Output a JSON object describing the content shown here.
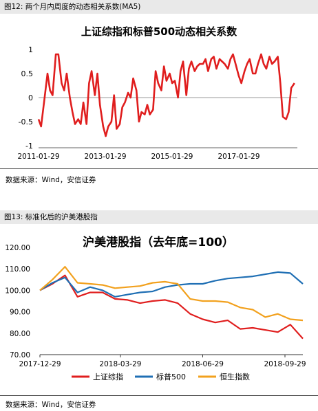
{
  "fig1": {
    "label": "图12: 两个月内周度的动态相关系数(MA5)",
    "source": "数据来源：Wind，安信证券"
  },
  "fig2": {
    "label": "图13: 标准化后的沪美港股指",
    "source": "数据来源：Wind，安信证券"
  },
  "colors": {
    "red": "#e01e1e",
    "blue": "#1f6fb4",
    "orange": "#f2a11e"
  },
  "chart_data": [
    {
      "type": "line",
      "title": "上证综指和标普500动态相关系数",
      "xlabel": "",
      "ylabel": "",
      "ylim": [
        -1,
        1
      ],
      "yticks": [
        "1",
        "0.5",
        "0",
        "-0.5",
        "-1"
      ],
      "xticks": [
        "2011-01-29",
        "2013-01-29",
        "2015-01-29",
        "2017-01-29"
      ],
      "xrange": [
        "2011-01-29",
        "2018-10-31"
      ],
      "grid": false,
      "series": [
        {
          "color": "#e01e1e",
          "x": [
            "2011-01-29",
            "2011-02-26",
            "2011-04-02",
            "2011-05-07",
            "2011-06-04",
            "2011-07-02",
            "2011-08-06",
            "2011-09-03",
            "2011-10-08",
            "2011-11-05",
            "2011-12-03",
            "2012-01-07",
            "2012-02-04",
            "2012-03-03",
            "2012-04-07",
            "2012-05-05",
            "2012-06-02",
            "2012-07-07",
            "2012-08-04",
            "2012-09-01",
            "2012-10-06",
            "2012-11-03",
            "2012-12-01",
            "2013-01-05",
            "2013-02-02",
            "2013-03-02",
            "2013-04-06",
            "2013-05-04",
            "2013-06-01",
            "2013-07-06",
            "2013-08-03",
            "2013-08-31",
            "2013-10-05",
            "2013-11-02",
            "2013-11-30",
            "2014-01-04",
            "2014-02-01",
            "2014-03-01",
            "2014-04-05",
            "2014-05-03",
            "2014-05-31",
            "2014-07-05",
            "2014-08-02",
            "2014-08-30",
            "2014-10-04",
            "2014-11-01",
            "2014-11-29",
            "2015-01-03",
            "2015-01-31",
            "2015-02-28",
            "2015-04-04",
            "2015-05-02",
            "2015-05-30",
            "2015-07-04",
            "2015-08-01",
            "2015-08-29",
            "2015-10-03",
            "2015-10-31",
            "2015-11-28",
            "2016-01-02",
            "2016-01-30",
            "2016-02-27",
            "2016-04-02",
            "2016-04-30",
            "2016-05-28",
            "2016-07-02",
            "2016-07-30",
            "2016-08-27",
            "2016-10-01",
            "2016-10-29",
            "2016-11-26",
            "2016-12-31",
            "2017-01-28",
            "2017-02-25",
            "2017-04-01",
            "2017-04-29",
            "2017-05-27",
            "2017-07-01",
            "2017-07-29",
            "2017-08-26",
            "2017-09-30",
            "2017-10-28",
            "2017-11-25",
            "2017-12-30",
            "2018-01-27",
            "2018-02-24",
            "2018-03-31",
            "2018-04-28",
            "2018-05-26",
            "2018-06-30",
            "2018-07-28",
            "2018-08-25",
            "2018-09-29"
          ],
          "values": [
            -0.45,
            -0.6,
            -0.05,
            0.5,
            0.15,
            0.05,
            0.9,
            0.9,
            0.3,
            0.15,
            0.5,
            0.0,
            -0.3,
            -0.55,
            -0.45,
            -0.55,
            -0.1,
            -0.55,
            0.3,
            0.55,
            0.05,
            0.5,
            -0.15,
            -0.6,
            -0.8,
            -0.6,
            -0.5,
            0.05,
            -0.65,
            -0.55,
            -0.2,
            -0.1,
            0.1,
            0.0,
            0.4,
            0.15,
            -0.5,
            -0.3,
            -0.35,
            -0.15,
            -0.35,
            -0.25,
            0.55,
            0.3,
            0.15,
            0.65,
            0.35,
            0.5,
            0.3,
            0.35,
            0.0,
            0.55,
            0.75,
            0.05,
            0.6,
            0.75,
            0.55,
            0.65,
            0.7,
            0.7,
            0.8,
            0.55,
            0.8,
            0.85,
            0.6,
            0.8,
            0.75,
            0.7,
            0.6,
            0.8,
            0.9,
            0.65,
            0.45,
            0.3,
            0.55,
            0.7,
            0.8,
            0.5,
            0.5,
            0.7,
            0.9,
            0.7,
            0.6,
            0.85,
            0.7,
            0.75,
            0.85,
            0.3,
            -0.4,
            -0.45,
            -0.3,
            0.2,
            0.3
          ]
        }
      ]
    },
    {
      "type": "line",
      "title": "沪美港股指（去年底=100）",
      "xlabel": "",
      "ylabel": "",
      "ylim": [
        70,
        120
      ],
      "yticks": [
        "120.00",
        "110.00",
        "100.00",
        "90.00",
        "80.00",
        "70.00"
      ],
      "xticks": [
        "2017-12-29",
        "2018-03-29",
        "2018-06-29",
        "2018-09-29"
      ],
      "xrange": [
        "2017-12-29",
        "2018-10-19"
      ],
      "grid": false,
      "legend": "bottom",
      "categories": [
        "2017-12-29",
        "2018-01-12",
        "2018-01-26",
        "2018-02-09",
        "2018-02-23",
        "2018-03-09",
        "2018-03-23",
        "2018-04-06",
        "2018-04-20",
        "2018-05-04",
        "2018-05-18",
        "2018-06-01",
        "2018-06-15",
        "2018-06-29",
        "2018-07-13",
        "2018-07-27",
        "2018-08-10",
        "2018-08-24",
        "2018-09-07",
        "2018-09-21",
        "2018-10-05",
        "2018-10-19"
      ],
      "series": [
        {
          "name": "上证综指",
          "color": "#e01e1e",
          "values": [
            100.0,
            103.0,
            107.0,
            97.0,
            99.0,
            99.0,
            96.0,
            95.5,
            94.0,
            95.0,
            95.5,
            94.0,
            89.0,
            86.5,
            85.0,
            86.0,
            82.0,
            82.5,
            81.5,
            80.5,
            84.0,
            77.5
          ]
        },
        {
          "name": "标普500",
          "color": "#1f6fb4",
          "values": [
            100.0,
            103.5,
            106.0,
            99.0,
            101.5,
            100.0,
            97.0,
            98.0,
            99.0,
            99.5,
            101.5,
            102.5,
            103.0,
            103.0,
            104.5,
            105.5,
            106.0,
            106.5,
            107.5,
            108.5,
            108.0,
            103.0
          ]
        },
        {
          "name": "恒生指数",
          "color": "#f2a11e",
          "values": [
            100.0,
            105.0,
            111.0,
            103.5,
            103.0,
            102.5,
            101.0,
            101.5,
            102.0,
            103.5,
            104.0,
            103.0,
            96.0,
            95.0,
            95.0,
            94.5,
            92.0,
            91.0,
            87.5,
            89.0,
            86.5,
            86.0
          ]
        }
      ]
    }
  ]
}
